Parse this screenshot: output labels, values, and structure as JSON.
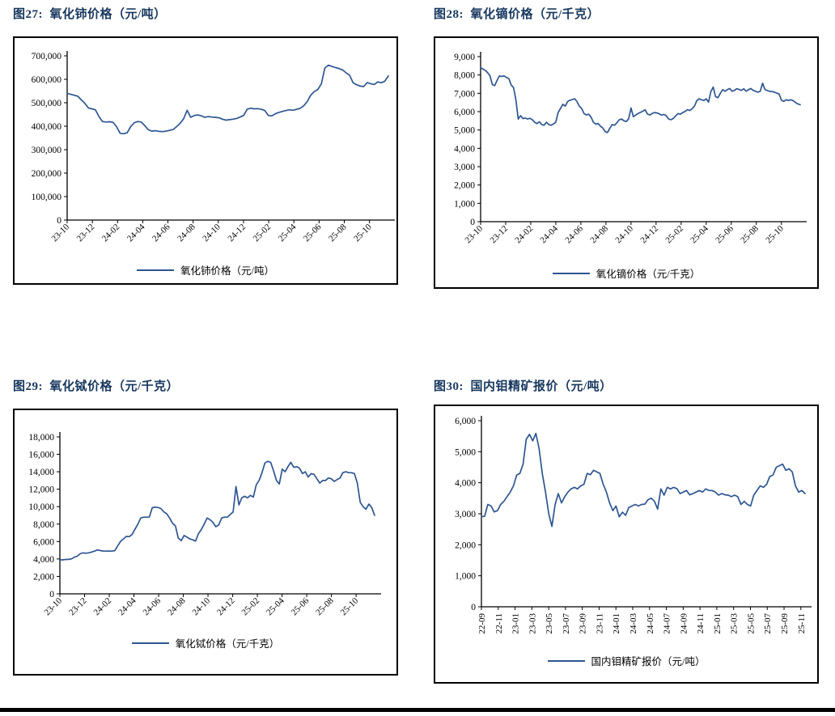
{
  "colors": {
    "title": "#17375e",
    "line": "#2e5691",
    "axis": "#000000"
  },
  "chart_data": [
    {
      "type": "line",
      "title": "图27:  氧化铈价格（元/吨）",
      "legend": "氧化铈价格（元/吨）",
      "ylabel": "",
      "xlabel": "",
      "ylim": [
        0,
        700000
      ],
      "ytick_step": 100000,
      "grid": false,
      "legend_position": "bottom",
      "x_ticks": [
        "23-10",
        "23-12",
        "24-02",
        "24-04",
        "24-06",
        "24-08",
        "24-10",
        "24-12",
        "25-02",
        "25-04",
        "25-06",
        "25-08",
        "25-10"
      ],
      "x_tick_rotation": -45,
      "x_total_months": 25.5,
      "series": [
        {
          "name": "氧化铈价格（元/吨）",
          "values": [
            540000,
            536000,
            532000,
            528000,
            512000,
            498000,
            478000,
            474000,
            470000,
            441000,
            420000,
            418000,
            419000,
            417000,
            398000,
            370000,
            368000,
            372000,
            398000,
            415000,
            420000,
            418000,
            402000,
            385000,
            379000,
            381000,
            378000,
            377000,
            379000,
            382000,
            386000,
            398000,
            412000,
            432000,
            468000,
            438000,
            446000,
            448000,
            444000,
            438000,
            441000,
            439000,
            438000,
            436000,
            430000,
            426000,
            428000,
            430000,
            433000,
            439000,
            446000,
            472000,
            477000,
            474000,
            475000,
            472000,
            467000,
            446000,
            444000,
            453000,
            459000,
            463000,
            467000,
            470000,
            468000,
            472000,
            476000,
            487000,
            505000,
            532000,
            548000,
            556000,
            580000,
            648000,
            660000,
            655000,
            650000,
            646000,
            640000,
            628000,
            618000,
            585000,
            577000,
            571000,
            569000,
            586000,
            581000,
            578000,
            589000,
            585000,
            592000,
            614000
          ]
        }
      ]
    },
    {
      "type": "line",
      "title": "图28:  氧化镝价格（元/千克）",
      "legend": "氧化镝价格（元/千克）",
      "ylabel": "",
      "xlabel": "",
      "ylim": [
        0,
        9000
      ],
      "ytick_step": 1000,
      "grid": false,
      "legend_position": "bottom",
      "x_ticks": [
        "23-10",
        "23-12",
        "24-02",
        "24-04",
        "24-06",
        "24-08",
        "24-10",
        "24-12",
        "25-02",
        "25-04",
        "25-06",
        "25-08",
        "25-10"
      ],
      "x_tick_rotation": -45,
      "x_total_months": 25.5,
      "series": [
        {
          "name": "氧化镝价格（元/千克）",
          "values": [
            8400,
            8320,
            8250,
            8120,
            7950,
            7480,
            7420,
            7700,
            7950,
            7920,
            7950,
            7870,
            7800,
            7450,
            7320,
            6650,
            5600,
            5780,
            5620,
            5650,
            5600,
            5640,
            5560,
            5420,
            5350,
            5450,
            5300,
            5260,
            5420,
            5300,
            5260,
            5330,
            5420,
            5950,
            6180,
            6400,
            6300,
            6550,
            6620,
            6660,
            6700,
            6550,
            6300,
            6170,
            5900,
            5820,
            5860,
            5700,
            5420,
            5320,
            5350,
            5210,
            5110,
            4910,
            4860,
            5090,
            5300,
            5260,
            5400,
            5560,
            5600,
            5500,
            5460,
            5610,
            6200,
            5720,
            5820,
            5900,
            5960,
            6020,
            6100,
            5870,
            5820,
            5900,
            5950,
            5930,
            5880,
            5810,
            5850,
            5780,
            5600,
            5560,
            5630,
            5770,
            5900,
            5860,
            5950,
            6010,
            6110,
            6060,
            6160,
            6300,
            6600,
            6700,
            6650,
            6610,
            6700,
            6520,
            7100,
            7340,
            6820,
            6760,
            7000,
            7200,
            7110,
            7200,
            7260,
            7110,
            7160,
            7250,
            7210,
            7160,
            7250,
            7110,
            7200,
            7260,
            7160,
            7110,
            7060,
            7110,
            7550,
            7210,
            7150,
            7110,
            7100,
            7060,
            7010,
            6960,
            6620,
            6560,
            6650,
            6610,
            6650,
            6600,
            6500,
            6420,
            6380
          ]
        }
      ]
    },
    {
      "type": "line",
      "title": "图29:  氧化铽价格（元/千克）",
      "legend": "氧化铽价格（元/千克）",
      "ylabel": "",
      "xlabel": "",
      "ylim": [
        0,
        18000
      ],
      "ytick_step": 2000,
      "grid": false,
      "legend_position": "bottom",
      "x_ticks": [
        "23-10",
        "23-12",
        "24-02",
        "24-04",
        "24-06",
        "24-08",
        "24-10",
        "24-12",
        "25-02",
        "25-04",
        "25-06",
        "25-08",
        "25-10"
      ],
      "x_tick_rotation": -45,
      "x_total_months": 25.5,
      "series": [
        {
          "name": "氧化铽价格（元/千克）",
          "values": [
            3900,
            3900,
            3940,
            3950,
            4010,
            4200,
            4310,
            4590,
            4700,
            4660,
            4700,
            4800,
            4900,
            5040,
            4960,
            4900,
            4900,
            4910,
            4900,
            4950,
            5480,
            6000,
            6300,
            6590,
            6560,
            6800,
            7400,
            8000,
            8690,
            8800,
            8790,
            8810,
            9880,
            9950,
            9900,
            9790,
            9400,
            9190,
            8700,
            8090,
            7800,
            6400,
            6100,
            6690,
            6500,
            6300,
            6200,
            6050,
            6900,
            7390,
            8000,
            8690,
            8500,
            8200,
            7700,
            7900,
            8690,
            8800,
            8790,
            9100,
            9400,
            12300,
            10200,
            11000,
            11190,
            11000,
            11290,
            11100,
            12500,
            13000,
            13900,
            15000,
            15200,
            15090,
            14100,
            13000,
            12600,
            14300,
            14000,
            14590,
            15090,
            14500,
            14590,
            14400,
            13800,
            14000,
            13400,
            13790,
            13700,
            13200,
            12700,
            13000,
            13000,
            13290,
            13200,
            12900,
            13100,
            13290,
            13890,
            14000,
            13900,
            13890,
            13800,
            12700,
            10500,
            10000,
            9700,
            10290,
            9900,
            9000
          ]
        }
      ]
    },
    {
      "type": "line",
      "title": "图30:  国内钼精矿报价（元/吨）",
      "legend": "国内钼精矿报价（元/吨）",
      "ylabel": "",
      "xlabel": "",
      "ylim": [
        0,
        6000
      ],
      "ytick_step": 1000,
      "grid": false,
      "legend_position": "bottom",
      "x_ticks": [
        "22-09",
        "22-11",
        "23-01",
        "23-03",
        "23-05",
        "23-07",
        "23-09",
        "23-11",
        "24-01",
        "24-03",
        "24-05",
        "24-07",
        "24-09",
        "24-11",
        "25-01",
        "25-03",
        "25-05",
        "25-07",
        "25-09",
        "25-11"
      ],
      "x_tick_rotation": -90,
      "x_total_months": 38.5,
      "series": [
        {
          "name": "国内钼精矿报价（元/吨）",
          "values": [
            2900,
            2920,
            3300,
            3250,
            3060,
            3100,
            3300,
            3400,
            3550,
            3700,
            3900,
            4250,
            4300,
            4600,
            5400,
            5560,
            5350,
            5590,
            5100,
            4300,
            3700,
            3000,
            2590,
            3300,
            3650,
            3350,
            3550,
            3700,
            3800,
            3850,
            3800,
            3900,
            3950,
            4300,
            4260,
            4400,
            4350,
            4300,
            3950,
            3700,
            3350,
            3100,
            3250,
            2900,
            3050,
            2950,
            3200,
            3250,
            3300,
            3250,
            3300,
            3310,
            3450,
            3500,
            3400,
            3150,
            3800,
            3600,
            3850,
            3800,
            3850,
            3810,
            3650,
            3700,
            3750,
            3610,
            3650,
            3700,
            3750,
            3700,
            3800,
            3750,
            3750,
            3700,
            3600,
            3650,
            3610,
            3600,
            3550,
            3600,
            3550,
            3300,
            3400,
            3300,
            3250,
            3600,
            3750,
            3900,
            3850,
            3950,
            4200,
            4250,
            4500,
            4550,
            4600,
            4400,
            4450,
            4350,
            3900,
            3700,
            3750,
            3650
          ]
        }
      ]
    }
  ]
}
